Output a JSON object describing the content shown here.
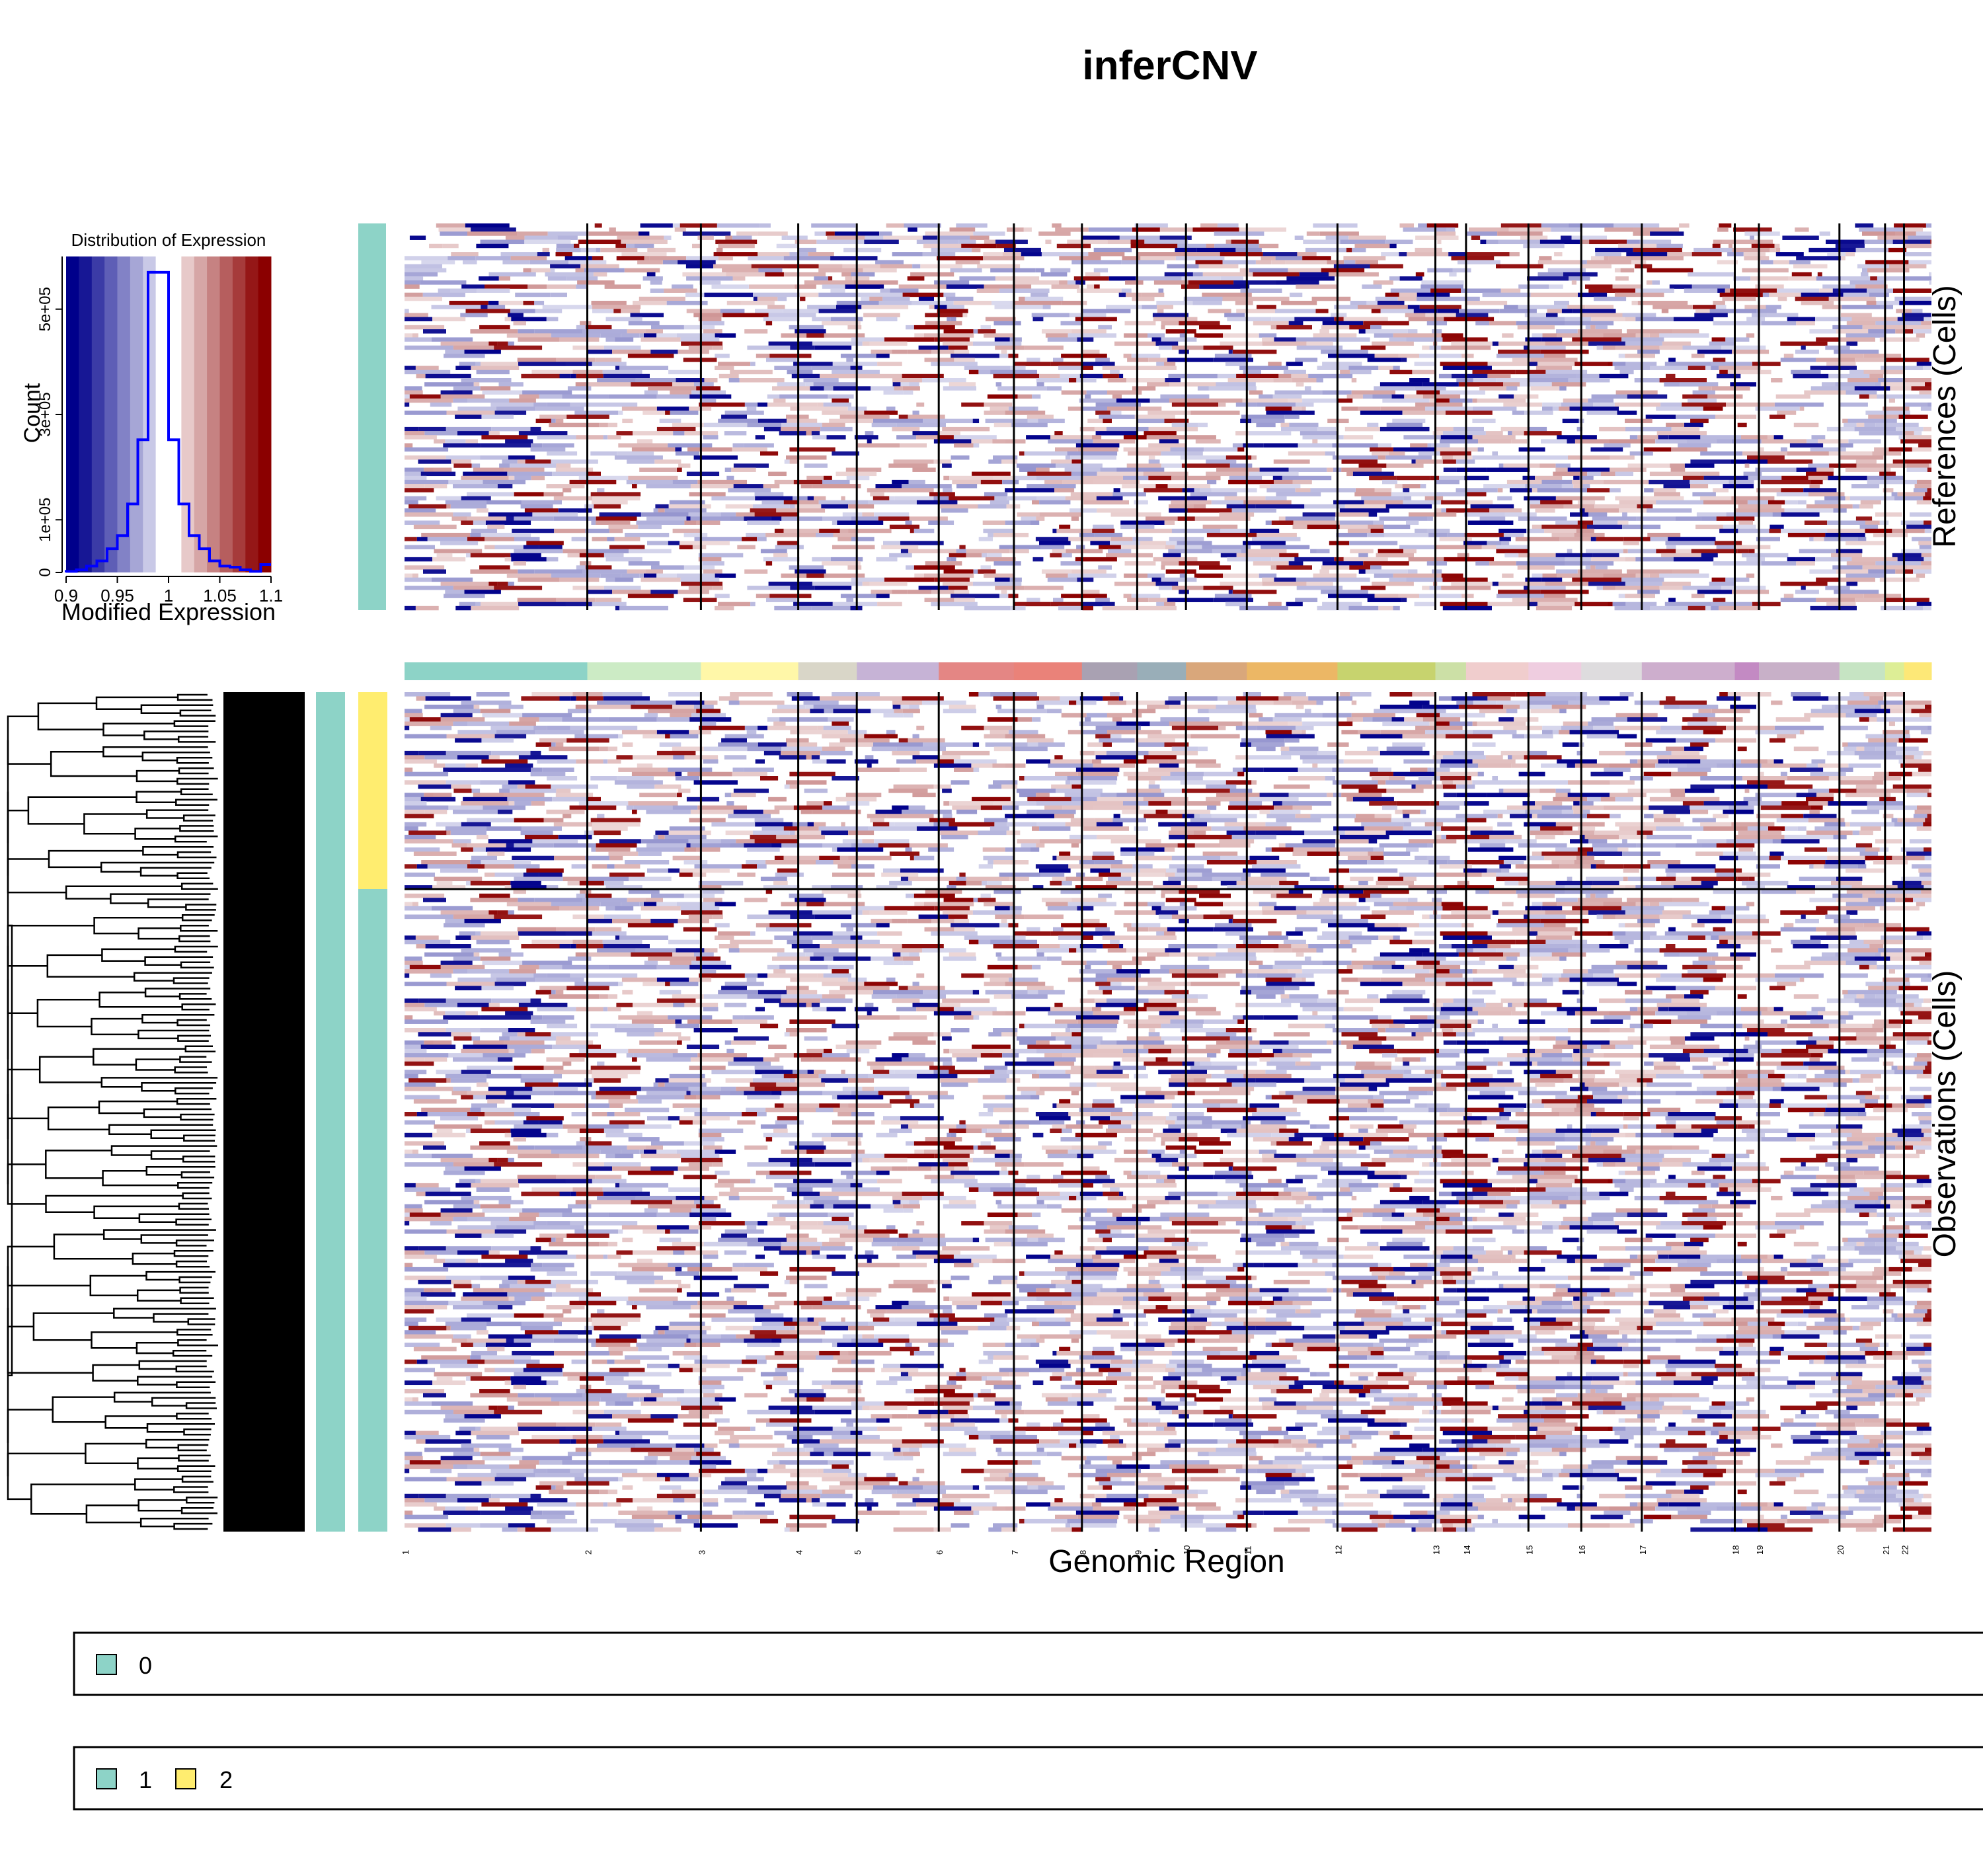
{
  "title": "inferCNV",
  "chart_data": [
    {
      "type": "heatmap",
      "panel": "references",
      "ylabel": "References (Cells)",
      "groups": [
        {
          "name": "0",
          "color": "#8DD3C7"
        }
      ],
      "value_range": [
        0.9,
        1.1
      ],
      "colormap": [
        "#00008B",
        "#FFFFFF",
        "#8B0000"
      ],
      "chromosomes": [
        "1",
        "2",
        "3",
        "4",
        "5",
        "6",
        "7",
        "8",
        "9",
        "10",
        "11",
        "12",
        "13",
        "14",
        "15",
        "16",
        "17",
        "18",
        "19",
        "20",
        "21",
        "22"
      ]
    },
    {
      "type": "heatmap",
      "panel": "observations",
      "xlabel": "Genomic Region",
      "ylabel": "Observations (Cells)",
      "groups": [
        {
          "name": "2",
          "color": "#FFED6F",
          "fraction": 0.235
        },
        {
          "name": "1",
          "color": "#8DD3C7",
          "fraction": 0.765
        }
      ],
      "chromosomes": [
        "1",
        "2",
        "3",
        "4",
        "5",
        "6",
        "7",
        "8",
        "9",
        "10",
        "11",
        "12",
        "13",
        "14",
        "15",
        "16",
        "17",
        "18",
        "19",
        "20",
        "21",
        "22"
      ],
      "chromosome_fraction": [
        0.1198,
        0.0745,
        0.0638,
        0.0384,
        0.0537,
        0.0493,
        0.0446,
        0.0362,
        0.032,
        0.0399,
        0.0594,
        0.0642,
        0.0201,
        0.0409,
        0.0346,
        0.0397,
        0.061,
        0.0158,
        0.0528,
        0.0299,
        0.0124,
        0.018
      ],
      "dendrogram": true
    },
    {
      "type": "histogram",
      "title": "Distribution of Expression",
      "xlabel": "Modified Expression",
      "ylabel": "Count",
      "xlim": [
        0.9,
        1.1
      ],
      "ylim": [
        0,
        600000
      ],
      "xticks": [
        "0.9",
        "0.95",
        "1",
        "1.05",
        "1.1"
      ],
      "yticks": [
        "0",
        "1e+05",
        "3e+05",
        "5e+05"
      ],
      "bins": [
        0.9,
        0.91,
        0.92,
        0.93,
        0.94,
        0.95,
        0.96,
        0.97,
        0.98,
        0.99,
        1.0,
        1.01,
        1.02,
        1.03,
        1.04,
        1.05,
        1.06,
        1.07,
        1.08,
        1.09,
        1.1
      ],
      "counts": [
        2000,
        5000,
        12000,
        22000,
        45000,
        70000,
        130000,
        252000,
        570000,
        570000,
        252000,
        130000,
        70000,
        45000,
        22000,
        12000,
        10000,
        5000,
        2000,
        15000
      ],
      "line_color": "#0000FF"
    }
  ],
  "legends": [
    {
      "items": [
        {
          "label": "0",
          "color": "#8DD3C7"
        }
      ]
    },
    {
      "items": [
        {
          "label": "1",
          "color": "#8DD3C7"
        },
        {
          "label": "2",
          "color": "#FFED6F"
        }
      ]
    }
  ],
  "chrom_colors": [
    "#8DD3C7",
    "#CCEBC5",
    "#FFF7A8",
    "#D9D6C8",
    "#C6B3D6",
    "#E48684",
    "#EA8279",
    "#A9A1B2",
    "#99AEB8",
    "#D9A77B",
    "#ECB765",
    "#C7D36E",
    "#CCE0A6",
    "#F0CDCD",
    "#EFCDE0",
    "#DEDCDE",
    "#CDAECD",
    "#C38AC3",
    "#C8B0C8",
    "#C6E4C3",
    "#DDEE96",
    "#FDE877"
  ]
}
